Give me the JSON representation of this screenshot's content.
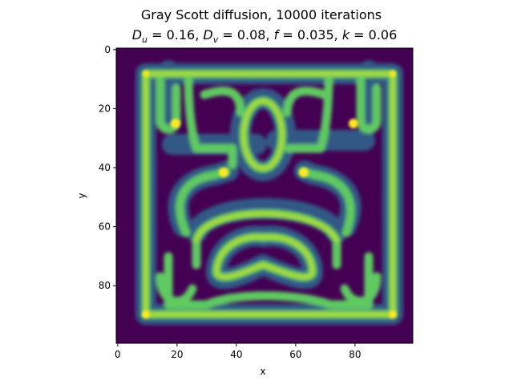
{
  "chart_data": {
    "type": "heatmap",
    "title": "Gray Scott diffusion, 10000 iterations",
    "subtitle": "D_u = 0.16, D_v = 0.08, f = 0.035, k = 0.06",
    "subtitle_parts": {
      "du_symbol": "D",
      "du_sub": "u",
      "du_value": " = 0.16, ",
      "dv_symbol": "D",
      "dv_sub": "v",
      "dv_value": " = 0.08, ",
      "f_symbol": "f",
      "f_value": " = 0.035, ",
      "k_symbol": "k",
      "k_value": " = 0.06"
    },
    "xlabel": "x",
    "ylabel": "y",
    "xlim": [
      0,
      99
    ],
    "ylim": [
      99,
      0
    ],
    "x_ticks": [
      0,
      20,
      40,
      60,
      80
    ],
    "y_ticks": [
      0,
      20,
      40,
      60,
      80
    ],
    "grid": false,
    "colormap": "viridis",
    "colors": {
      "low": "#440154",
      "mid_low": "#3b528b",
      "mid": "#21908c",
      "mid_high": "#5dc863",
      "high": "#fde725"
    }
  }
}
